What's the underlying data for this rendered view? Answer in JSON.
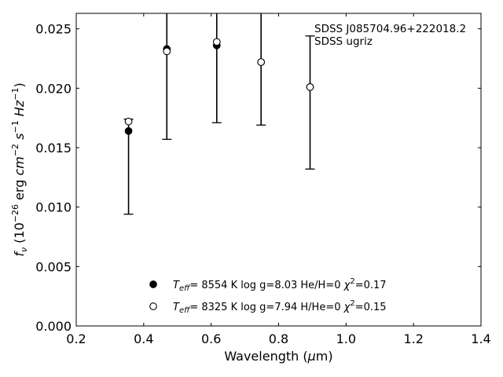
{
  "chart_data": {
    "type": "scatter",
    "title": "",
    "xlabel": "Wavelength (μm)",
    "ylabel": "f_ν (10^-26 erg cm^-2 s^-1 Hz^-1)",
    "xlim": [
      0.2,
      1.4
    ],
    "ylim": [
      0.0,
      0.0263
    ],
    "x_ticks": [
      0.2,
      0.4,
      0.6,
      0.8,
      1.0,
      1.2,
      1.4
    ],
    "x_tick_labels": [
      "0.2",
      "0.4",
      "0.6",
      "0.8",
      "1.0",
      "1.2",
      "1.4"
    ],
    "y_ticks": [
      0.0,
      0.005,
      0.01,
      0.015,
      0.02,
      0.025
    ],
    "y_tick_labels": [
      "0.000",
      "0.005",
      "0.010",
      "0.015",
      "0.020",
      "0.025"
    ],
    "grid": false,
    "legend_position": "bottom-center",
    "annotations": [
      "SDSS J085704.96+222018.2",
      "SDSS ugriz"
    ],
    "observed": {
      "x": [
        0.3551,
        0.4686,
        0.6166,
        0.748,
        0.8932
      ],
      "y": [
        0.0172,
        0.0231,
        0.0239,
        0.0222,
        0.0201
      ],
      "err_low": [
        0.0094,
        0.0157,
        0.0171,
        0.0169,
        0.0132
      ],
      "err_high": [
        0.0174,
        0.0263,
        0.0263,
        0.0263,
        0.0244
      ]
    },
    "series": [
      {
        "name": "T_eff= 8554 K log g=8.03 He/H=0 χ²=0.17",
        "marker": "filled-circle",
        "x": [
          0.3551,
          0.4686,
          0.6166,
          0.748,
          0.8932
        ],
        "y": [
          0.0164,
          0.0233,
          0.0236,
          0.0222,
          0.0201
        ]
      },
      {
        "name": "T_eff= 8325 K log g=7.94 H/He=0 χ²=0.15",
        "marker": "open-circle",
        "x": [
          0.3551,
          0.4686,
          0.6166,
          0.748,
          0.8932
        ],
        "y": [
          0.0172,
          0.0231,
          0.0239,
          0.0222,
          0.0201
        ]
      }
    ],
    "colors": {
      "axis": "#000000",
      "marker": "#000000",
      "background": "#ffffff"
    }
  }
}
